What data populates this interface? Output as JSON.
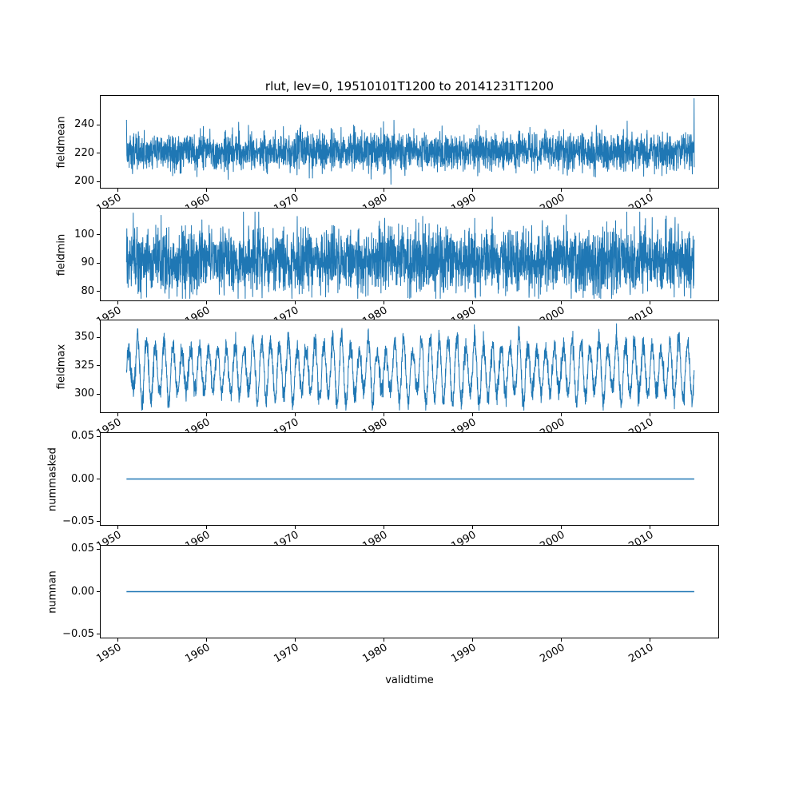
{
  "chart_data": {
    "type": "line",
    "title": "rlut, lev=0, 19510101T1200 to 20141231T1200",
    "xlabel": "validtime",
    "line_color": "#1f77b4",
    "background": "#ffffff",
    "legend": "none",
    "grid": false,
    "x_range": [
      1948.0,
      2017.8
    ],
    "x_data_range": [
      1951.0,
      2015.0
    ],
    "n_points": 3200,
    "xticks": [
      {
        "v": 1950,
        "label": "1950"
      },
      {
        "v": 1960,
        "label": "1960"
      },
      {
        "v": 1970,
        "label": "1970"
      },
      {
        "v": 1980,
        "label": "1980"
      },
      {
        "v": 1990,
        "label": "1990"
      },
      {
        "v": 2000,
        "label": "2000"
      },
      {
        "v": 2010,
        "label": "2010"
      }
    ],
    "subplots": [
      {
        "ylabel": "fieldmean",
        "ylim": [
          195,
          261
        ],
        "yticks": [
          {
            "v": 200,
            "label": "200"
          },
          {
            "v": 220,
            "label": "220"
          },
          {
            "v": 240,
            "label": "240"
          }
        ],
        "series": {
          "kind": "noisy",
          "base": 221,
          "noise": 6.5,
          "min": 198,
          "max": 245,
          "start_spike": 243.5,
          "end_spike": 258.5
        }
      },
      {
        "ylabel": "fieldmin",
        "ylim": [
          76.5,
          109.5
        ],
        "yticks": [
          {
            "v": 80,
            "label": "80"
          },
          {
            "v": 90,
            "label": "90"
          },
          {
            "v": 100,
            "label": "100"
          }
        ],
        "series": {
          "kind": "noisy",
          "base": 91,
          "noise": 5.5,
          "min": 77.5,
          "max": 108
        }
      },
      {
        "ylabel": "fieldmax",
        "ylim": [
          283.5,
          365.5
        ],
        "yticks": [
          {
            "v": 300,
            "label": "300"
          },
          {
            "v": 325,
            "label": "325"
          },
          {
            "v": 350,
            "label": "350"
          }
        ],
        "series": {
          "kind": "seasonal",
          "base": 321,
          "amp_min": 16,
          "amp_max": 30,
          "noise": 4.5,
          "min": 286,
          "max": 362
        }
      },
      {
        "ylabel": "nummasked",
        "ylim": [
          -0.055,
          0.055
        ],
        "yticks": [
          {
            "v": -0.05,
            "label": "−0.05"
          },
          {
            "v": 0,
            "label": "0.00"
          },
          {
            "v": 0.05,
            "label": "0.05"
          }
        ],
        "series": {
          "kind": "constant",
          "value": 0
        }
      },
      {
        "ylabel": "numnan",
        "ylim": [
          -0.055,
          0.055
        ],
        "yticks": [
          {
            "v": -0.05,
            "label": "−0.05"
          },
          {
            "v": 0,
            "label": "0.00"
          },
          {
            "v": 0.05,
            "label": "0.05"
          }
        ],
        "series": {
          "kind": "constant",
          "value": 0
        }
      }
    ]
  }
}
